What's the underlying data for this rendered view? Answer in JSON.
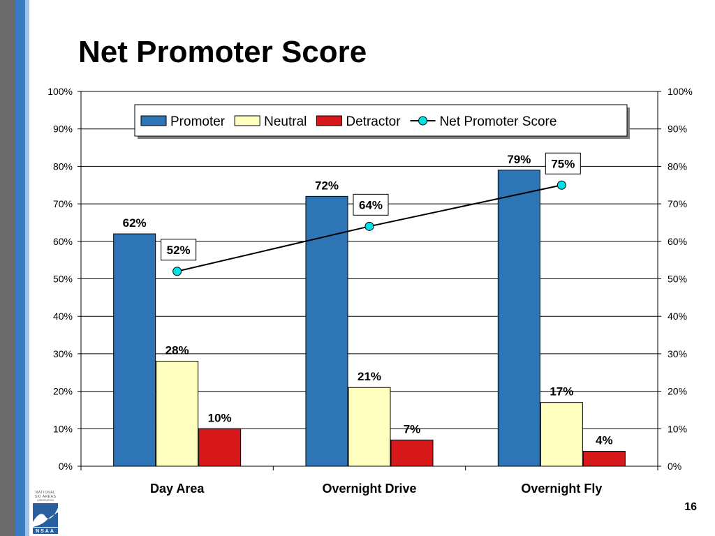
{
  "slide": {
    "title": "Net Promoter Score",
    "page_number": "16",
    "logo": {
      "lines": [
        "NATIONAL",
        "SKI AREAS",
        "ASSOCIATION"
      ],
      "mark": "NSAA"
    }
  },
  "colors": {
    "promoter": "#2e75b6",
    "neutral": "#ffffc0",
    "detractor": "#d7191c",
    "nps_line": "#000000",
    "nps_marker": "#00e0e8"
  },
  "chart_data": {
    "type": "bar",
    "categories": [
      "Day Area",
      "Overnight Drive",
      "Overnight Fly"
    ],
    "series": [
      {
        "name": "Promoter",
        "values": [
          62,
          72,
          79
        ],
        "labels": [
          "62%",
          "72%",
          "79%"
        ]
      },
      {
        "name": "Neutral",
        "values": [
          28,
          21,
          17
        ],
        "labels": [
          "28%",
          "21%",
          "17%"
        ]
      },
      {
        "name": "Detractor",
        "values": [
          10,
          7,
          4
        ],
        "labels": [
          "10%",
          "7%",
          "4%"
        ]
      }
    ],
    "line_series": {
      "name": "Net Promoter Score",
      "values": [
        52,
        64,
        75
      ],
      "labels": [
        "52%",
        "64%",
        "75%"
      ]
    },
    "ylim": [
      0,
      100
    ],
    "yticks": [
      "0%",
      "10%",
      "20%",
      "30%",
      "40%",
      "50%",
      "60%",
      "70%",
      "80%",
      "90%",
      "100%"
    ],
    "y2ticks": [
      "0%",
      "10%",
      "20%",
      "30%",
      "40%",
      "50%",
      "60%",
      "70%",
      "80%",
      "90%",
      "100%"
    ],
    "grid": true,
    "legend": "top-center"
  }
}
